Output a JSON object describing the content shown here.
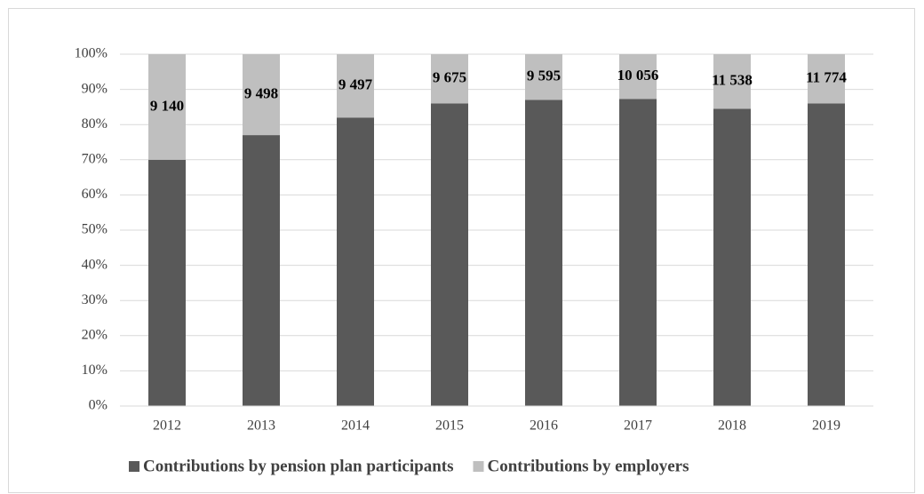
{
  "chart_data": {
    "type": "stacked_bar_percent",
    "categories": [
      "2012",
      "2013",
      "2014",
      "2015",
      "2016",
      "2017",
      "2018",
      "2019"
    ],
    "series": [
      {
        "name": "Contributions by pension plan participants",
        "color": "#595959",
        "values": [
          70,
          77,
          82,
          86,
          87,
          87.3,
          84.5,
          86
        ]
      },
      {
        "name": "Contributions by employers",
        "color": "#bfbfbf",
        "values": [
          30,
          23,
          18,
          14,
          13,
          12.7,
          15.5,
          14
        ]
      }
    ],
    "annotations": [
      "9 140",
      "9 498",
      "9 497",
      "9 675",
      "9 595",
      "10 056",
      "11 538",
      "11 774"
    ],
    "ylim": [
      0,
      100
    ],
    "yticks": [
      {
        "value": 0,
        "label": "0%"
      },
      {
        "value": 10,
        "label": "10%"
      },
      {
        "value": 20,
        "label": "20%"
      },
      {
        "value": 30,
        "label": "30%"
      },
      {
        "value": 40,
        "label": "40%"
      },
      {
        "value": 50,
        "label": "50%"
      },
      {
        "value": 60,
        "label": "60%"
      },
      {
        "value": 70,
        "label": "70%"
      },
      {
        "value": 80,
        "label": "80%"
      },
      {
        "value": 90,
        "label": "90%"
      },
      {
        "value": 100,
        "label": "100%"
      }
    ],
    "grid": true,
    "legend": "bottom"
  }
}
